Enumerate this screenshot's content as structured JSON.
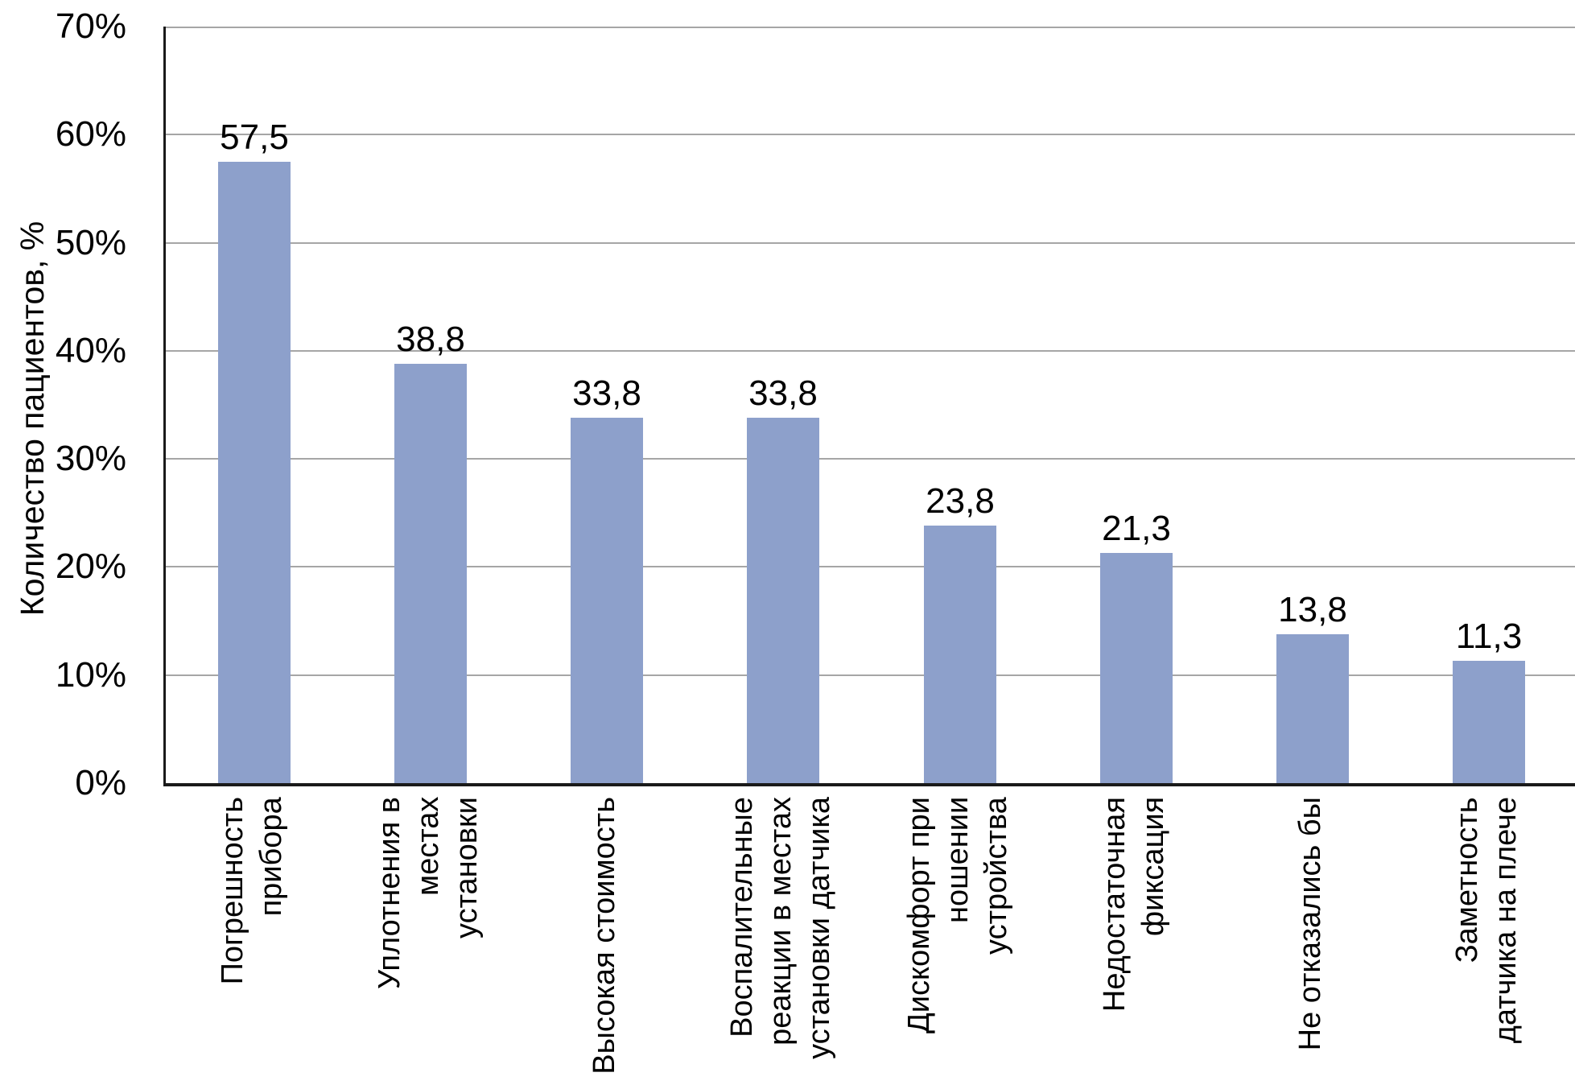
{
  "chart_data": {
    "type": "bar",
    "title": "",
    "ylabel": "Количество пациентов, %",
    "xlabel": "",
    "categories": [
      "Погрешность\nприбора",
      "Уплотнения в местах\nустановки",
      "Высокая стоимость",
      "Воспалительные\nреакции в местах\nустановки датчика",
      "Дискомфорт при\nношении устройства",
      "Недостаточная\nфиксация",
      "Не отказались бы",
      "Заметность\nдатчика на плече"
    ],
    "values": [
      57.5,
      38.8,
      33.8,
      33.8,
      23.8,
      21.3,
      13.8,
      11.3
    ],
    "value_labels": [
      "57,5",
      "38,8",
      "33,8",
      "33,8",
      "23,8",
      "21,3",
      "13,8",
      "11,3"
    ],
    "yticks": [
      "70%",
      "60%",
      "50%",
      "40%",
      "30%",
      "20%",
      "10%",
      "0%"
    ],
    "ylim": [
      0,
      70
    ],
    "grid": "horizontal",
    "legend": "none",
    "colors": {
      "bar": "#8da0cb",
      "gridline": "#a6a6a6",
      "axis": "#1a1a1a",
      "text": "#000000"
    }
  }
}
